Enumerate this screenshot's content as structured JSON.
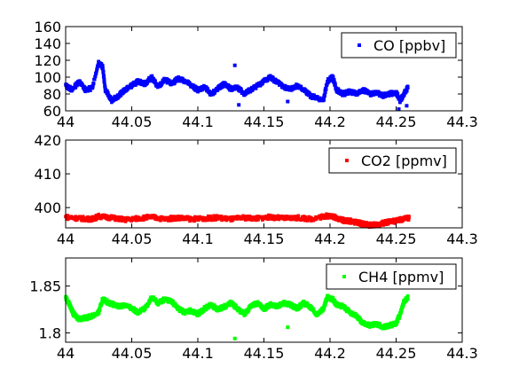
{
  "chart_data": [
    {
      "type": "scatter",
      "panel": "top",
      "xlim": [
        44,
        44.3
      ],
      "ylim": [
        60,
        160
      ],
      "x_ticks": [
        "44",
        "44.05",
        "44.1",
        "44.15",
        "44.2",
        "44.25",
        "44.3"
      ],
      "y_ticks": [
        "60",
        "80",
        "100",
        "120",
        "140",
        "160"
      ],
      "grid": false,
      "legend_position": "top-right",
      "series": [
        {
          "name": "CO [ppbv]",
          "color": "#0000ff",
          "trace": [
            [
              44.0,
              90
            ],
            [
              44.005,
              85
            ],
            [
              44.01,
              95
            ],
            [
              44.015,
              85
            ],
            [
              44.02,
              87
            ],
            [
              44.025,
              118
            ],
            [
              44.028,
              112
            ],
            [
              44.03,
              85
            ],
            [
              44.035,
              72
            ],
            [
              44.04,
              78
            ],
            [
              44.045,
              85
            ],
            [
              44.05,
              90
            ],
            [
              44.055,
              95
            ],
            [
              44.06,
              92
            ],
            [
              44.065,
              100
            ],
            [
              44.07,
              88
            ],
            [
              44.075,
              97
            ],
            [
              44.08,
              92
            ],
            [
              44.085,
              98
            ],
            [
              44.09,
              96
            ],
            [
              44.095,
              90
            ],
            [
              44.1,
              85
            ],
            [
              44.105,
              88
            ],
            [
              44.11,
              80
            ],
            [
              44.115,
              86
            ],
            [
              44.12,
              92
            ],
            [
              44.125,
              86
            ],
            [
              44.13,
              88
            ],
            [
              44.135,
              80
            ],
            [
              44.14,
              85
            ],
            [
              44.145,
              90
            ],
            [
              44.15,
              95
            ],
            [
              44.155,
              100
            ],
            [
              44.16,
              94
            ],
            [
              44.165,
              88
            ],
            [
              44.17,
              86
            ],
            [
              44.175,
              90
            ],
            [
              44.18,
              85
            ],
            [
              44.185,
              78
            ],
            [
              44.19,
              75
            ],
            [
              44.195,
              72
            ],
            [
              44.198,
              95
            ],
            [
              44.202,
              100
            ],
            [
              44.205,
              85
            ],
            [
              44.21,
              80
            ],
            [
              44.215,
              83
            ],
            [
              44.22,
              80
            ],
            [
              44.225,
              85
            ],
            [
              44.23,
              80
            ],
            [
              44.235,
              82
            ],
            [
              44.24,
              78
            ],
            [
              44.245,
              80
            ],
            [
              44.25,
              82
            ],
            [
              44.253,
              72
            ],
            [
              44.256,
              80
            ],
            [
              44.259,
              88
            ]
          ],
          "outliers": [
            [
              44.128,
              114
            ],
            [
              44.131,
              67
            ],
            [
              44.168,
              71
            ],
            [
              44.252,
              62
            ],
            [
              44.258,
              66
            ]
          ]
        }
      ]
    },
    {
      "type": "scatter",
      "panel": "middle",
      "xlim": [
        44,
        44.3
      ],
      "ylim": [
        394,
        420
      ],
      "x_ticks": [
        "44",
        "44.05",
        "44.1",
        "44.15",
        "44.2",
        "44.25",
        "44.3"
      ],
      "y_ticks": [
        "400",
        "410",
        "420"
      ],
      "grid": false,
      "legend_position": "top-right",
      "series": [
        {
          "name": "CO2 [ppmv]",
          "color": "#ff0000",
          "trace": [
            [
              44.0,
              397.2
            ],
            [
              44.01,
              396.8
            ],
            [
              44.02,
              396.6
            ],
            [
              44.025,
              397.4
            ],
            [
              44.035,
              397.0
            ],
            [
              44.045,
              396.4
            ],
            [
              44.055,
              396.8
            ],
            [
              44.065,
              397.2
            ],
            [
              44.075,
              396.6
            ],
            [
              44.085,
              397.0
            ],
            [
              44.095,
              396.6
            ],
            [
              44.105,
              396.8
            ],
            [
              44.115,
              397.0
            ],
            [
              44.125,
              396.6
            ],
            [
              44.135,
              397.0
            ],
            [
              44.145,
              396.8
            ],
            [
              44.155,
              397.2
            ],
            [
              44.165,
              396.8
            ],
            [
              44.175,
              397.0
            ],
            [
              44.185,
              396.6
            ],
            [
              44.195,
              397.4
            ],
            [
              44.2,
              397.6
            ],
            [
              44.205,
              397.0
            ],
            [
              44.21,
              396.2
            ],
            [
              44.215,
              396.0
            ],
            [
              44.22,
              395.6
            ],
            [
              44.225,
              395.2
            ],
            [
              44.23,
              394.8
            ],
            [
              44.235,
              394.9
            ],
            [
              44.24,
              395.4
            ],
            [
              44.245,
              395.8
            ],
            [
              44.25,
              396.0
            ],
            [
              44.255,
              396.6
            ],
            [
              44.26,
              397.0
            ]
          ],
          "outliers": []
        }
      ]
    },
    {
      "type": "scatter",
      "panel": "bottom",
      "xlim": [
        44,
        44.3
      ],
      "ylim": [
        1.79,
        1.88
      ],
      "x_ticks": [
        "44",
        "44.05",
        "44.1",
        "44.15",
        "44.2",
        "44.25",
        "44.3"
      ],
      "y_ticks": [
        "1.8",
        "1.85"
      ],
      "grid": false,
      "legend_position": "top-right",
      "series": [
        {
          "name": "CH4 [ppmv]",
          "color": "#00ff00",
          "trace": [
            [
              44.0,
              1.838
            ],
            [
              44.003,
              1.83
            ],
            [
              44.006,
              1.82
            ],
            [
              44.01,
              1.815
            ],
            [
              44.015,
              1.816
            ],
            [
              44.02,
              1.818
            ],
            [
              44.025,
              1.822
            ],
            [
              44.028,
              1.836
            ],
            [
              44.033,
              1.832
            ],
            [
              44.04,
              1.828
            ],
            [
              44.045,
              1.83
            ],
            [
              44.05,
              1.826
            ],
            [
              44.055,
              1.822
            ],
            [
              44.06,
              1.826
            ],
            [
              44.065,
              1.838
            ],
            [
              44.07,
              1.832
            ],
            [
              44.075,
              1.836
            ],
            [
              44.08,
              1.834
            ],
            [
              44.085,
              1.826
            ],
            [
              44.09,
              1.822
            ],
            [
              44.095,
              1.824
            ],
            [
              44.1,
              1.82
            ],
            [
              44.105,
              1.826
            ],
            [
              44.11,
              1.83
            ],
            [
              44.115,
              1.825
            ],
            [
              44.12,
              1.828
            ],
            [
              44.125,
              1.832
            ],
            [
              44.13,
              1.826
            ],
            [
              44.135,
              1.82
            ],
            [
              44.14,
              1.828
            ],
            [
              44.145,
              1.832
            ],
            [
              44.15,
              1.826
            ],
            [
              44.155,
              1.83
            ],
            [
              44.16,
              1.828
            ],
            [
              44.165,
              1.832
            ],
            [
              44.17,
              1.83
            ],
            [
              44.175,
              1.826
            ],
            [
              44.18,
              1.832
            ],
            [
              44.185,
              1.828
            ],
            [
              44.19,
              1.82
            ],
            [
              44.195,
              1.826
            ],
            [
              44.198,
              1.838
            ],
            [
              44.202,
              1.836
            ],
            [
              44.205,
              1.83
            ],
            [
              44.21,
              1.828
            ],
            [
              44.215,
              1.822
            ],
            [
              44.22,
              1.818
            ],
            [
              44.225,
              1.81
            ],
            [
              44.23,
              1.808
            ],
            [
              44.235,
              1.81
            ],
            [
              44.24,
              1.806
            ],
            [
              44.245,
              1.808
            ],
            [
              44.25,
              1.81
            ],
            [
              44.253,
              1.82
            ],
            [
              44.256,
              1.834
            ],
            [
              44.259,
              1.838
            ]
          ],
          "outliers": [
            [
              44.128,
              1.794
            ],
            [
              44.168,
              1.806
            ]
          ]
        }
      ]
    }
  ]
}
